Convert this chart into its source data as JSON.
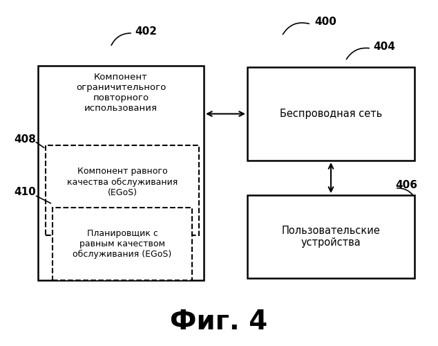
{
  "bg_color": "#ffffff",
  "fig_title": "Фиг. 4",
  "fig_title_fontsize": 28,
  "label_400": "400",
  "label_402": "402",
  "label_404": "404",
  "label_406": "406",
  "label_408": "408",
  "label_410": "410",
  "box402_text": "Компонент\nограничительного\nповторного\nиспользования",
  "box404_text": "Беспроводная сеть",
  "box406_text": "Пользовательские\nустройства",
  "box408_text": "Компонент равного\nкачества обслуживания\n(EGoS)",
  "box410_text": "Планировщик с\nравным качеством\nобслуживания (EGoS)",
  "text_fontsize": 9.5,
  "label_fontsize": 11,
  "inner_text_fontsize": 9.0
}
